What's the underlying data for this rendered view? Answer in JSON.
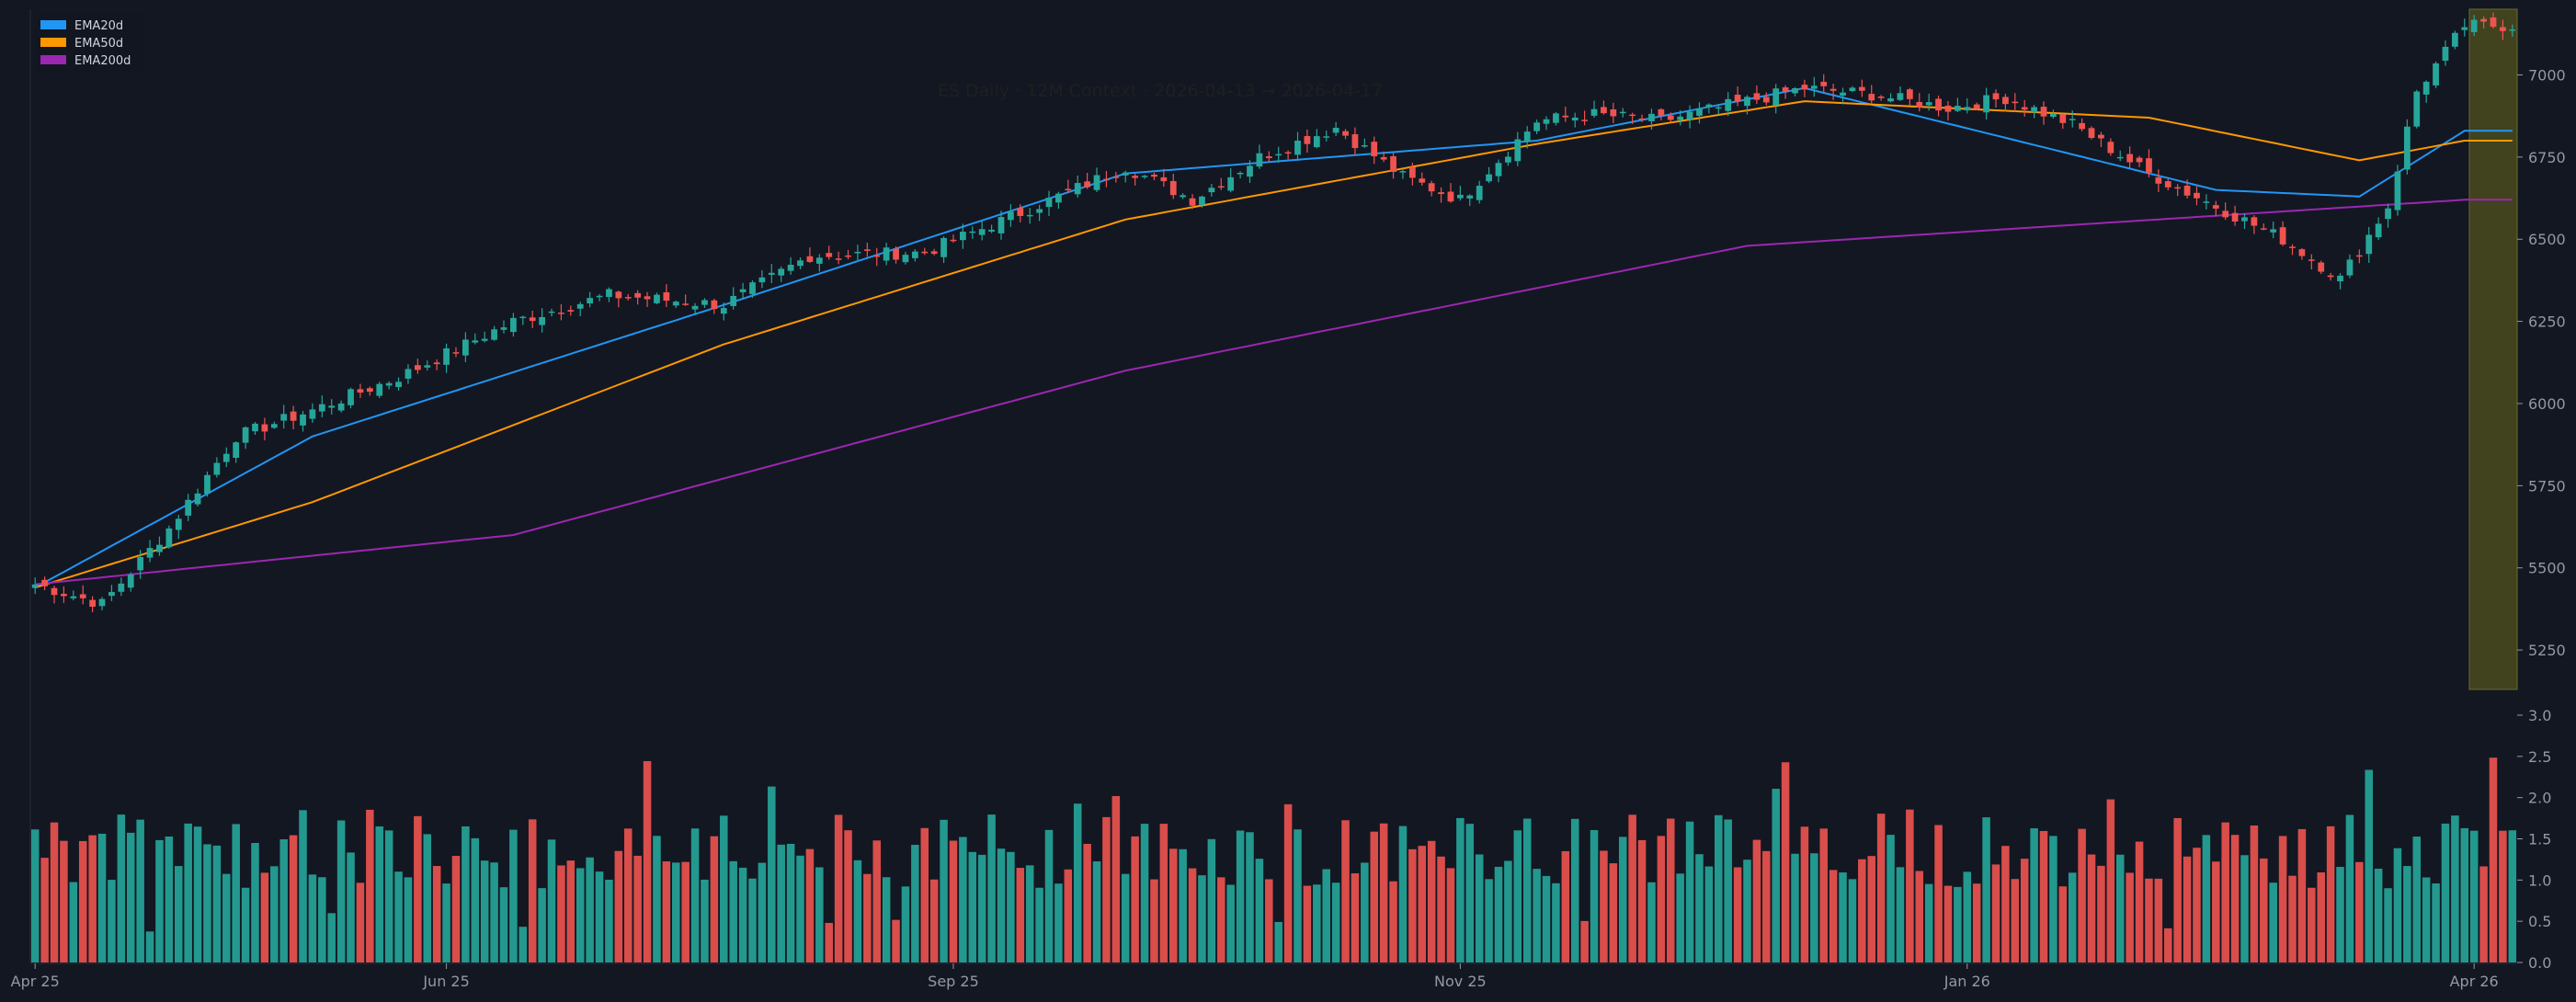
{
  "chart_data": {
    "type": "candlestick",
    "title": "ES Daily · 12M Context · 2026-04-13 → 2026-04-17",
    "x_ticks": [
      "Apr 25",
      "Jun 25",
      "Sep 25",
      "Nov 25",
      "Jan 26",
      "Apr 26"
    ],
    "price_axis": {
      "ylim": [
        5130,
        7200
      ],
      "ticks": [
        5250,
        5500,
        5750,
        6000,
        6250,
        6500,
        6750,
        7000
      ]
    },
    "volume_axis": {
      "ylim": [
        0,
        3.0
      ],
      "ticks": [
        "0.0",
        "0.5",
        "1.0",
        "1.5",
        "2.0",
        "2.5",
        "3.0"
      ]
    },
    "legend": [
      {
        "name": "EMA20d",
        "color": "#2196f3"
      },
      {
        "name": "EMA50d",
        "color": "#ff9800"
      },
      {
        "name": "EMA200d",
        "color": "#9c27b0"
      }
    ],
    "legend_position": "top-left",
    "highlight_window": {
      "label": "2026-04-13 → 2026-04-17",
      "color": "#4a4a1e"
    },
    "grid": false,
    "colors": {
      "up": "#26a69a",
      "down": "#ef5350",
      "background": "#131722",
      "text": "#9598a1"
    },
    "key_points": {
      "close": [
        [
          "Apr 25",
          5450
        ],
        [
          "May 1",
          5390
        ],
        [
          "May 10",
          5620
        ],
        [
          "May 20",
          5900
        ],
        [
          "Jun 1",
          5980
        ],
        [
          "Jun 15",
          6080
        ],
        [
          "Jul 1",
          6250
        ],
        [
          "Jul 15",
          6330
        ],
        [
          "Aug 1",
          6300
        ],
        [
          "Aug 15",
          6450
        ],
        [
          "Sep 1",
          6460
        ],
        [
          "Sep 15",
          6580
        ],
        [
          "Oct 1",
          6720
        ],
        [
          "Oct 10",
          6620
        ],
        [
          "Oct 20",
          6750
        ],
        [
          "Nov 1",
          6840
        ],
        [
          "Nov 12",
          6690
        ],
        [
          "Nov 20",
          6620
        ],
        [
          "Dec 1",
          6860
        ],
        [
          "Dec 10",
          6880
        ],
        [
          "Dec 20",
          6860
        ],
        [
          "Jan 1",
          6920
        ],
        [
          "Jan 10",
          6960
        ],
        [
          "Jan 20",
          6940
        ],
        [
          "Feb 1",
          6900
        ],
        [
          "Feb 10",
          6930
        ],
        [
          "Feb 20",
          6850
        ],
        [
          "Mar 1",
          6700
        ],
        [
          "Mar 10",
          6600
        ],
        [
          "Mar 20",
          6500
        ],
        [
          "Mar 30",
          6380
        ],
        [
          "Apr 5",
          6600
        ],
        [
          "Apr 10",
          6950
        ],
        [
          "Apr 17",
          7150
        ]
      ],
      "ema20": [
        [
          "Apr 25",
          5440
        ],
        [
          "Jun 1",
          5900
        ],
        [
          "Aug 1",
          6300
        ],
        [
          "Oct 1",
          6700
        ],
        [
          "Dec 1",
          6800
        ],
        [
          "Jan 10",
          6960
        ],
        [
          "Mar 10",
          6650
        ],
        [
          "Apr 1",
          6630
        ],
        [
          "Apr 17",
          6830
        ]
      ],
      "ema50": [
        [
          "Apr 25",
          5440
        ],
        [
          "Jun 1",
          5700
        ],
        [
          "Aug 1",
          6180
        ],
        [
          "Oct 1",
          6560
        ],
        [
          "Dec 1",
          6790
        ],
        [
          "Jan 10",
          6920
        ],
        [
          "Mar 1",
          6870
        ],
        [
          "Apr 1",
          6740
        ],
        [
          "Apr 17",
          6800
        ]
      ],
      "ema200": [
        [
          "Apr 25",
          5450
        ],
        [
          "Jul 1",
          5600
        ],
        [
          "Oct 1",
          6100
        ],
        [
          "Jan 1",
          6480
        ],
        [
          "Apr 17",
          6620
        ]
      ]
    }
  }
}
